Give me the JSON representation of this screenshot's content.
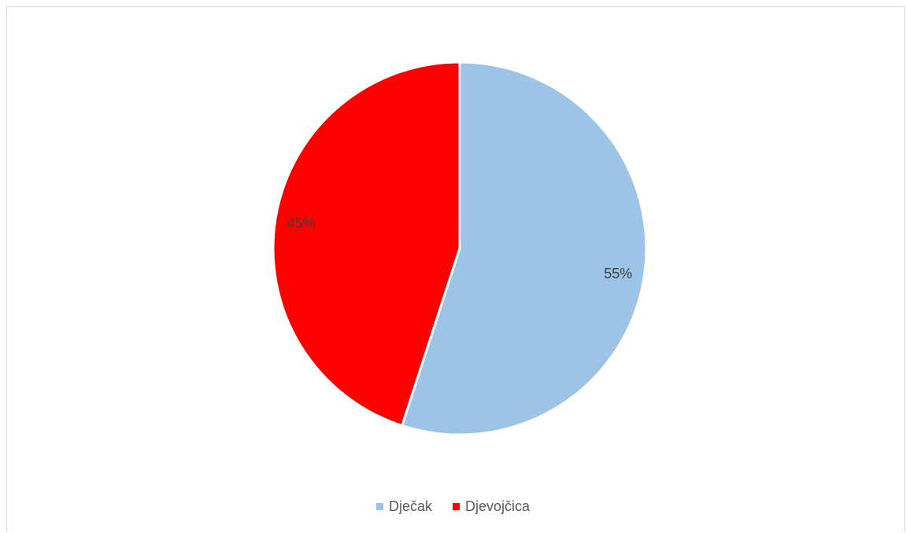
{
  "chart_data": {
    "type": "pie",
    "title": "",
    "categories": [
      "Dječak",
      "Djevojčica"
    ],
    "values": [
      55,
      45
    ],
    "data_labels": [
      "55%",
      "45%"
    ],
    "colors": [
      "#9DC3E6",
      "#FF0000"
    ],
    "start_angle_deg": 0,
    "direction": "clockwise",
    "legend_position": "bottom"
  }
}
